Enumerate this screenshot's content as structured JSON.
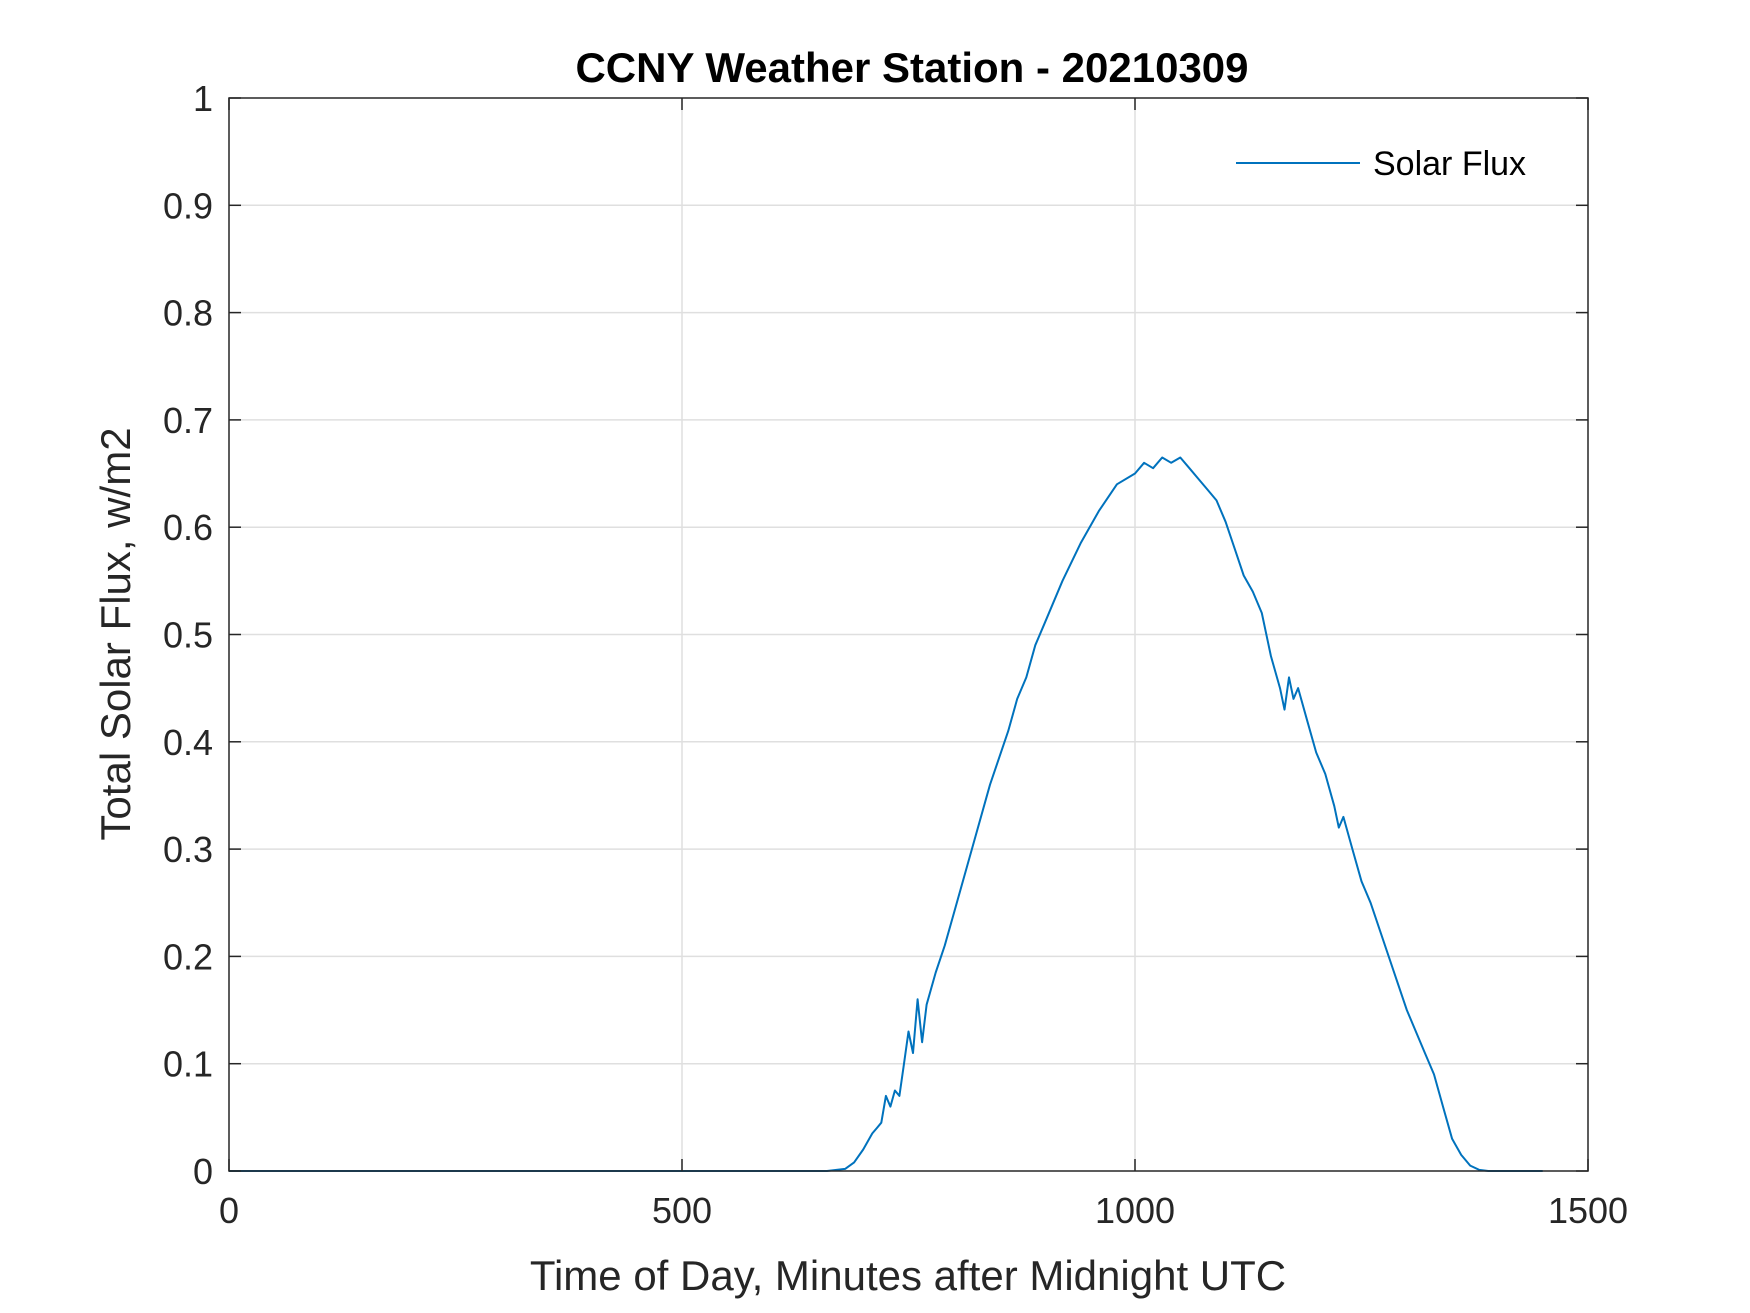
{
  "chart_data": {
    "type": "line",
    "title": "CCNY Weather Station - 20210309",
    "xlabel": "Time of Day, Minutes after Midnight UTC",
    "ylabel": "Total Solar Flux, w/m2",
    "xlim": [
      0,
      1500
    ],
    "ylim": [
      0,
      1
    ],
    "xticks": [
      0,
      500,
      1000,
      1500
    ],
    "yticks": [
      0,
      0.1,
      0.2,
      0.3,
      0.4,
      0.5,
      0.6,
      0.7,
      0.8,
      0.9,
      1
    ],
    "xtick_labels": [
      "0",
      "500",
      "1000",
      "1500"
    ],
    "ytick_labels": [
      "0",
      "0.1",
      "0.2",
      "0.3",
      "0.4",
      "0.5",
      "0.6",
      "0.7",
      "0.8",
      "0.9",
      "1"
    ],
    "grid": true,
    "legend_position": "top-right",
    "colors": {
      "series": "#0072BD",
      "axes": "#262626",
      "grid": "#dfdfdf"
    },
    "series": [
      {
        "name": "Solar Flux",
        "x": [
          0,
          100,
          200,
          300,
          400,
          500,
          600,
          660,
          680,
          690,
          700,
          710,
          715,
          720,
          725,
          730,
          735,
          740,
          745,
          750,
          755,
          760,
          765,
          770,
          780,
          790,
          800,
          820,
          840,
          860,
          870,
          880,
          890,
          900,
          920,
          940,
          960,
          980,
          1000,
          1010,
          1020,
          1030,
          1040,
          1050,
          1060,
          1070,
          1080,
          1090,
          1100,
          1110,
          1120,
          1130,
          1140,
          1150,
          1160,
          1165,
          1170,
          1175,
          1180,
          1190,
          1200,
          1210,
          1220,
          1225,
          1230,
          1240,
          1250,
          1260,
          1280,
          1300,
          1320,
          1330,
          1340,
          1350,
          1360,
          1370,
          1380,
          1390,
          1400,
          1420,
          1450
        ],
        "y": [
          0,
          0,
          0,
          0,
          0,
          0,
          0,
          0,
          0.002,
          0.008,
          0.02,
          0.035,
          0.04,
          0.045,
          0.07,
          0.06,
          0.075,
          0.07,
          0.1,
          0.13,
          0.11,
          0.16,
          0.12,
          0.155,
          0.185,
          0.21,
          0.24,
          0.3,
          0.36,
          0.41,
          0.44,
          0.46,
          0.49,
          0.51,
          0.55,
          0.585,
          0.615,
          0.64,
          0.65,
          0.66,
          0.655,
          0.665,
          0.66,
          0.665,
          0.655,
          0.645,
          0.635,
          0.625,
          0.605,
          0.58,
          0.555,
          0.54,
          0.52,
          0.48,
          0.45,
          0.43,
          0.46,
          0.44,
          0.45,
          0.42,
          0.39,
          0.37,
          0.34,
          0.32,
          0.33,
          0.3,
          0.27,
          0.25,
          0.2,
          0.15,
          0.11,
          0.09,
          0.06,
          0.03,
          0.015,
          0.005,
          0.001,
          0,
          0,
          0,
          0
        ]
      }
    ]
  }
}
